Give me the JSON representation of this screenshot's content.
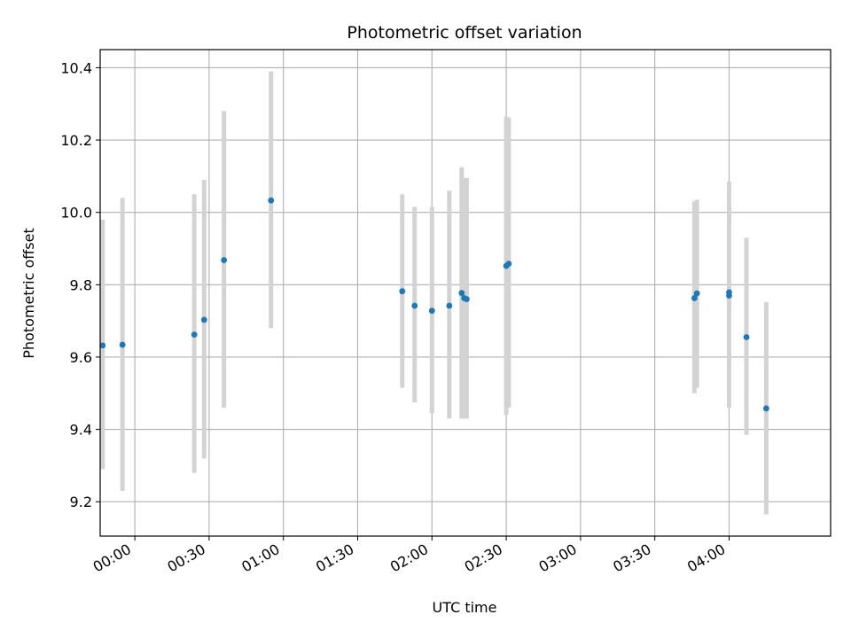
{
  "chart_data": {
    "type": "scatter",
    "title": "Photometric offset variation",
    "xlabel": "UTC time",
    "ylabel": "Photometric offset",
    "x_unit": "time HH:MM (UTC)",
    "xlim": [
      "23:46",
      "04:41"
    ],
    "ylim": [
      9.105,
      10.45
    ],
    "grid": true,
    "x_ticks": [
      "00:00",
      "00:30",
      "01:00",
      "01:30",
      "02:00",
      "02:30",
      "03:00",
      "03:30",
      "04:00"
    ],
    "y_ticks": [
      9.2,
      9.4,
      9.6,
      9.8,
      10.0,
      10.2,
      10.4
    ],
    "y_tick_labels": [
      "9.2",
      "9.4",
      "9.6",
      "9.8",
      "10.0",
      "10.2",
      "10.4"
    ],
    "marker_color": "#1f77b4",
    "errorbar_color": "#d3d3d3",
    "points": [
      {
        "x": "23:47",
        "y": 9.632,
        "low": 9.29,
        "high": 9.98
      },
      {
        "x": "23:55",
        "y": 9.634,
        "low": 9.23,
        "high": 10.04
      },
      {
        "x": "00:24",
        "y": 9.662,
        "low": 9.28,
        "high": 10.05
      },
      {
        "x": "00:28",
        "y": 9.703,
        "low": 9.32,
        "high": 10.09
      },
      {
        "x": "00:36",
        "y": 9.868,
        "low": 9.46,
        "high": 10.28
      },
      {
        "x": "00:55",
        "y": 10.033,
        "low": 9.68,
        "high": 10.39
      },
      {
        "x": "01:48",
        "y": 9.782,
        "low": 9.515,
        "high": 10.05
      },
      {
        "x": "01:53",
        "y": 9.742,
        "low": 9.475,
        "high": 10.015
      },
      {
        "x": "02:00",
        "y": 9.728,
        "low": 9.445,
        "high": 10.015
      },
      {
        "x": "02:07",
        "y": 9.742,
        "low": 9.43,
        "high": 10.06
      },
      {
        "x": "02:12",
        "y": 9.777,
        "low": 9.43,
        "high": 10.125
      },
      {
        "x": "02:13",
        "y": 9.763,
        "low": 9.43,
        "high": 10.095
      },
      {
        "x": "02:14",
        "y": 9.76,
        "low": 9.43,
        "high": 10.095
      },
      {
        "x": "02:30",
        "y": 9.852,
        "low": 9.44,
        "high": 10.265
      },
      {
        "x": "02:31",
        "y": 9.858,
        "low": 9.46,
        "high": 10.262
      },
      {
        "x": "03:46",
        "y": 9.763,
        "low": 9.5,
        "high": 10.03
      },
      {
        "x": "03:47",
        "y": 9.776,
        "low": 9.515,
        "high": 10.035
      },
      {
        "x": "04:00",
        "y": 9.779,
        "low": 9.48,
        "high": 10.085
      },
      {
        "x": "04:00",
        "y": 9.77,
        "low": 9.46,
        "high": 10.06
      },
      {
        "x": "04:07",
        "y": 9.655,
        "low": 9.385,
        "high": 9.93
      },
      {
        "x": "04:15",
        "y": 9.458,
        "low": 9.165,
        "high": 9.752
      }
    ]
  }
}
